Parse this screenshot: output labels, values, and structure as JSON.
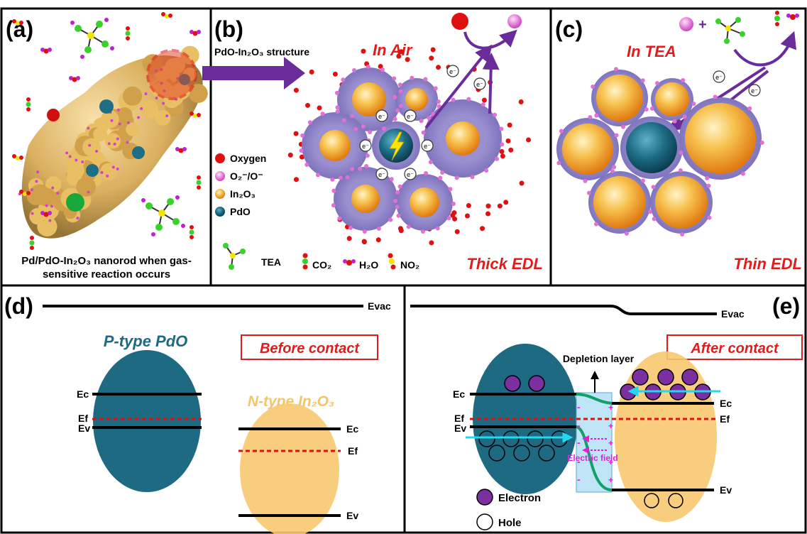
{
  "panel_a": {
    "label": "(a)",
    "caption_lines": [
      "Pd/PdO-In₂O₃ nanorod when gas-",
      "sensitive reaction occurs"
    ]
  },
  "panel_b": {
    "label": "(b)",
    "arrow_label": "PdO-In₂O₃ structure",
    "title": "In Air",
    "footer": "Thick EDL",
    "electron_symbol": "e⁻",
    "legend": [
      {
        "key": "oxygen",
        "label": "Oxygen",
        "color": "#e01010"
      },
      {
        "key": "o2",
        "label": "O₂⁻/O⁻",
        "color": "#e58ad8"
      },
      {
        "key": "in2o3",
        "label": "In₂O₃",
        "color": "#f2a630"
      },
      {
        "key": "pdo",
        "label": "PdO",
        "color": "#1e6e86"
      }
    ],
    "molecules": [
      "TEA",
      "CO₂",
      "H₂O",
      "NO₂"
    ]
  },
  "panel_c": {
    "label": "(c)",
    "title": "In TEA",
    "footer": "Thin EDL"
  },
  "panel_d": {
    "label": "(d)",
    "evac": "Evac",
    "p_type_label": "P-type PdO",
    "n_type_label": "N-type In₂O₃",
    "box_label": "Before contact",
    "levels_left": [
      "Ec",
      "Ef",
      "Ev"
    ],
    "levels_right": [
      "Ec",
      "Ef",
      "Ev"
    ]
  },
  "panel_e": {
    "label": "(e)",
    "evac": "Evac",
    "box_label": "After contact",
    "depletion": "Depletion layer",
    "field": "Electric field",
    "levels_left": [
      "Ec",
      "Ef",
      "Ev"
    ],
    "levels_right": [
      "Ec",
      "Ef",
      "Ev"
    ],
    "legend": [
      {
        "key": "electron",
        "label": "Electron",
        "color": "#7b2fa0"
      },
      {
        "key": "hole",
        "label": "Hole",
        "color": "#ffffff"
      }
    ]
  },
  "colors": {
    "title_red": "#e11c1c",
    "pdo_blue": "#1e6a82",
    "in2o3_orange": "#f5c46a",
    "arrow_purple": "#6a2c9a",
    "field_magenta": "#e020e0",
    "band_green": "#12a06a",
    "depletion_blue": "#bfe4f5",
    "cyan_arrow": "#22d8f0"
  }
}
